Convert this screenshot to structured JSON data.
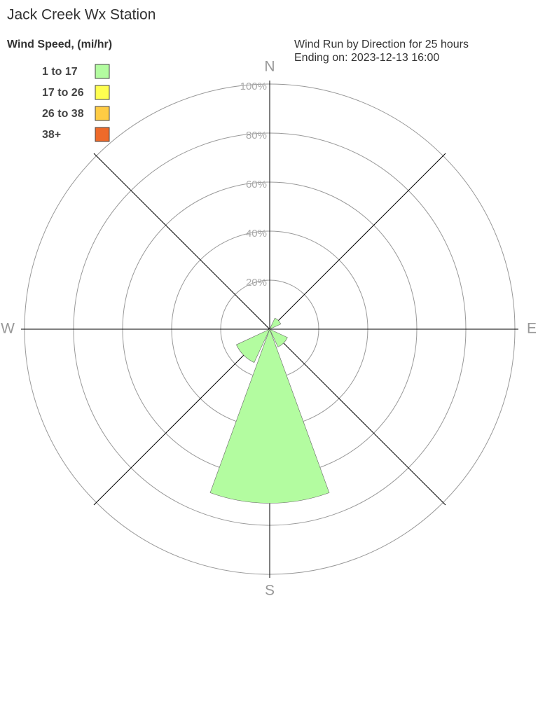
{
  "chart_data": {
    "type": "windrose",
    "title": "Jack Creek Wx Station",
    "legend_title": "Wind Speed, (mi/hr)",
    "subtitle": [
      "Wind Run by Direction for 25 hours",
      "Ending on: 2023-12-13 16:00"
    ],
    "categories": [
      "N",
      null,
      "E",
      null,
      "S",
      null,
      "W",
      null
    ],
    "series": [
      {
        "name": "1 to 17",
        "color": "#b3fca0",
        "values": [
          0,
          5,
          0,
          8,
          71,
          15,
          0,
          0
        ]
      },
      {
        "name": "17 to 26",
        "color": "#ffff50",
        "values": [
          0,
          0,
          0,
          0,
          0,
          0,
          0,
          0
        ]
      },
      {
        "name": "26 to 38",
        "color": "#ffcc44",
        "values": [
          0,
          0,
          0,
          0,
          0,
          0,
          0,
          0
        ]
      },
      {
        "name": "38+",
        "color": "#ee6a2a",
        "values": [
          0,
          0,
          0,
          0,
          0,
          0,
          0,
          0
        ]
      }
    ],
    "rlim": [
      0,
      100
    ],
    "rticks": [
      {
        "value": 20,
        "label": "20%"
      },
      {
        "value": 40,
        "label": "40%"
      },
      {
        "value": 60,
        "label": "60%"
      },
      {
        "value": 80,
        "label": "80%"
      },
      {
        "value": 100,
        "label": "100%"
      }
    ]
  }
}
